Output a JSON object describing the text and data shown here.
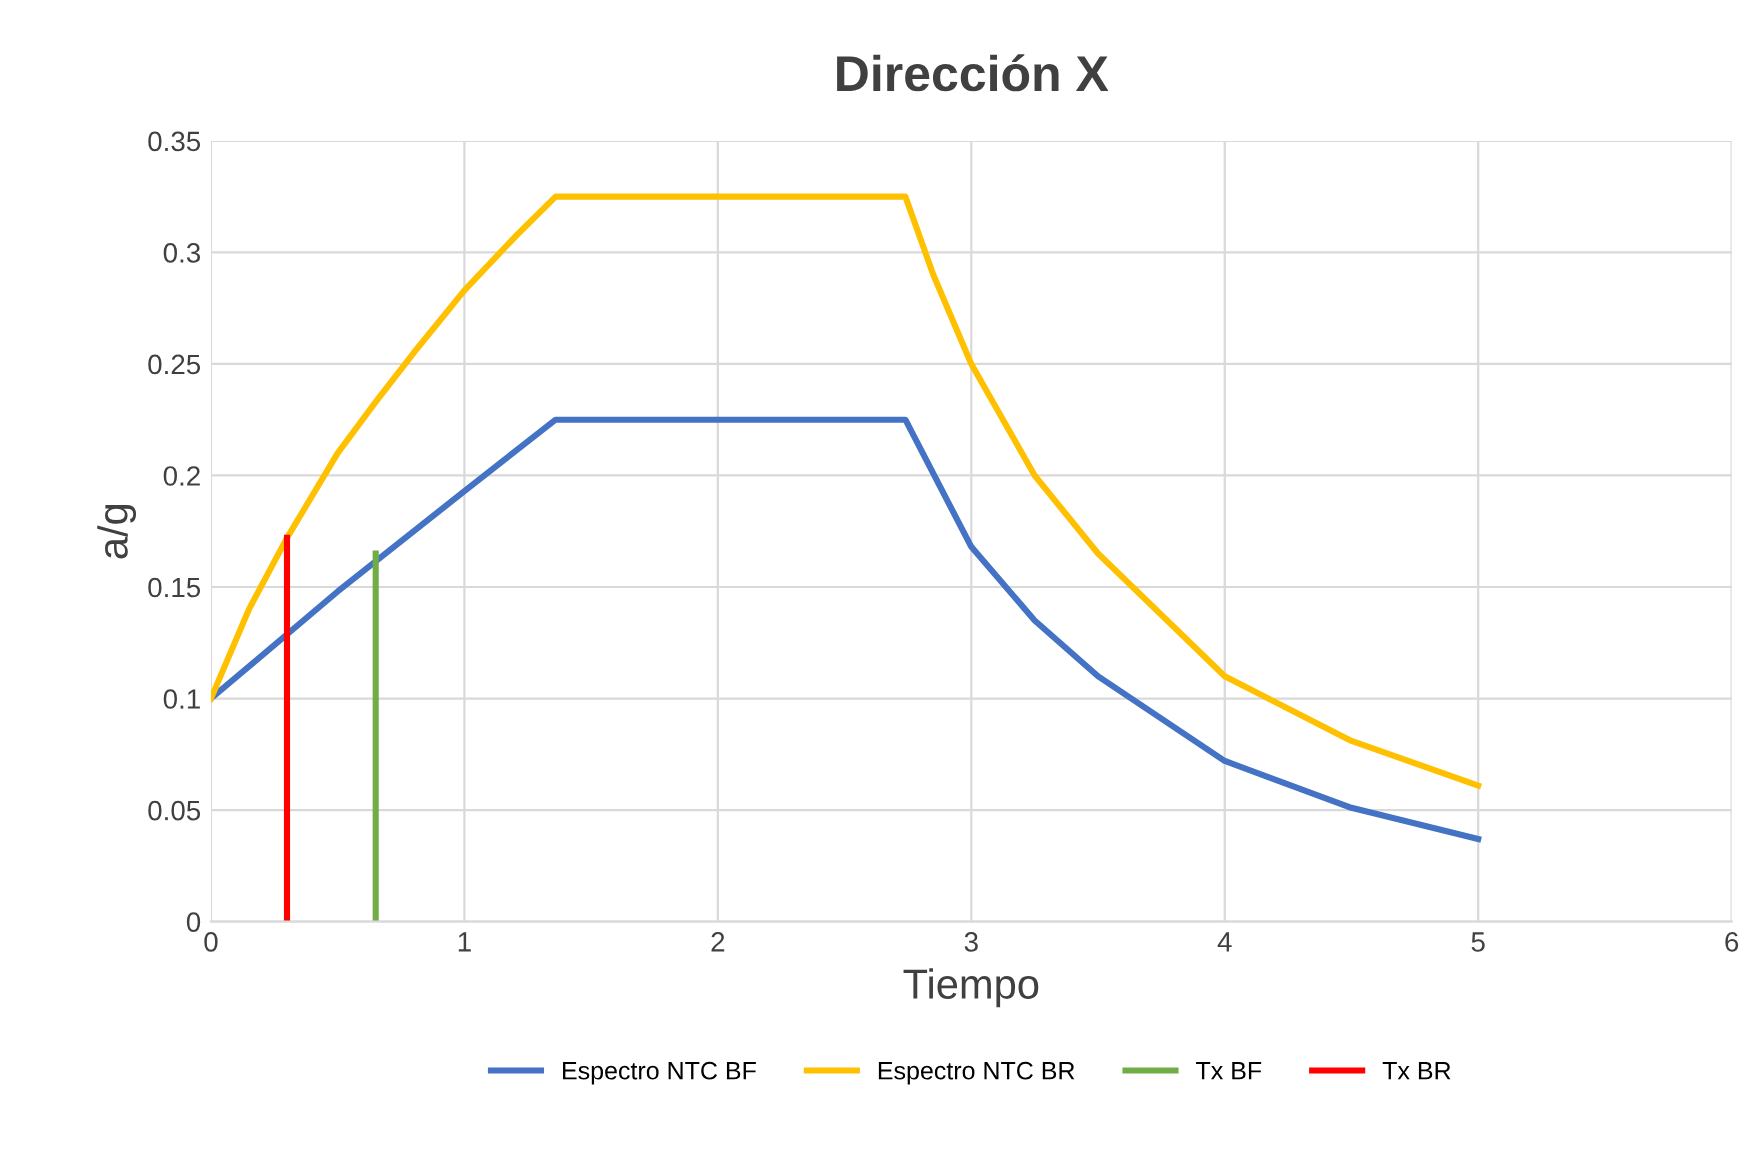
{
  "chart_data": {
    "type": "line",
    "title": "Dirección X",
    "xlabel": "Tiempo",
    "ylabel": "a/g",
    "xlim": [
      0,
      6
    ],
    "xticks": [
      0,
      1,
      2,
      3,
      4,
      5,
      6
    ],
    "ylim": [
      0,
      0.35
    ],
    "yticks": [
      0,
      0.05,
      0.1,
      0.15,
      0.2,
      0.25,
      0.3,
      0.35
    ],
    "grid": true,
    "legend": "bottom",
    "marker": "none",
    "line_style": "solid",
    "series": [
      {
        "name": "Espectro NTC BF",
        "color": "#4472c4",
        "x": [
          0,
          0.5,
          1,
          1.36,
          2.74,
          3,
          3.25,
          3.5,
          4,
          4.5,
          5
        ],
        "values": [
          0.1,
          0.148,
          0.193,
          0.225,
          0.225,
          0.168,
          0.135,
          0.11,
          0.072,
          0.051,
          0.037
        ]
      },
      {
        "name": "Espectro NTC BR",
        "color": "#ffc000",
        "x": [
          0,
          0.15,
          0.3,
          0.5,
          0.65,
          0.8,
          1,
          1.2,
          1.36,
          2.74,
          2.85,
          3,
          3.25,
          3.5,
          4,
          4.5,
          5
        ],
        "values": [
          0.1,
          0.14,
          0.172,
          0.21,
          0.233,
          0.255,
          0.283,
          0.307,
          0.325,
          0.325,
          0.29,
          0.25,
          0.2,
          0.165,
          0.11,
          0.081,
          0.061
        ]
      },
      {
        "name": "Tx BF",
        "color": "#70ad47",
        "x": [
          0.65,
          0.65
        ],
        "values": [
          0,
          0.165
        ]
      },
      {
        "name": "Tx BR",
        "color": "#ff0000",
        "x": [
          0.3,
          0.3
        ],
        "values": [
          0,
          0.172
        ]
      }
    ]
  }
}
